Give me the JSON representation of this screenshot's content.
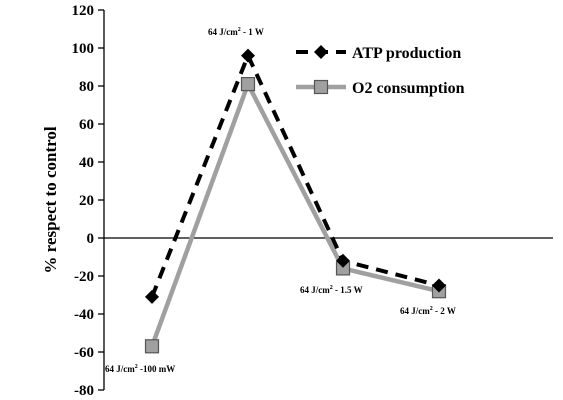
{
  "chart_data": {
    "type": "line",
    "ylabel": "% respect to control",
    "ylim": [
      -80,
      120
    ],
    "yticks": [
      -80,
      -60,
      -40,
      -20,
      0,
      20,
      40,
      60,
      80,
      100,
      120
    ],
    "yticks_labels": [
      "-80",
      "-60",
      "-40",
      "-20",
      "0",
      "20",
      "40",
      "60",
      "80",
      "100",
      "120"
    ],
    "grid": false,
    "legend_position": "top-right",
    "categories": [
      "64 J/cm2 -100 mW",
      "64 J/cm2 - 1 W",
      "64 J/cm2 - 1.5 W",
      "64 J/cm2 - 2 W"
    ],
    "annotations": [
      {
        "base": "64 J/cm",
        "sup": "2",
        "tail": " -100 mW"
      },
      {
        "base": "64 J/cm",
        "sup": "2",
        "tail": " - 1 W"
      },
      {
        "base": "64 J/cm",
        "sup": "2",
        "tail": " - 1.5 W"
      },
      {
        "base": "64 J/cm",
        "sup": "2",
        "tail": " - 2 W"
      }
    ],
    "series": [
      {
        "name": "ATP production",
        "values": [
          -31,
          96,
          -12,
          -25
        ],
        "color": "#000000",
        "style": "dashed",
        "marker": "diamond"
      },
      {
        "name": "O2 consumption",
        "values": [
          -57,
          81,
          -16,
          -28
        ],
        "color": "#a0a0a0",
        "style": "solid",
        "marker": "square"
      }
    ]
  }
}
